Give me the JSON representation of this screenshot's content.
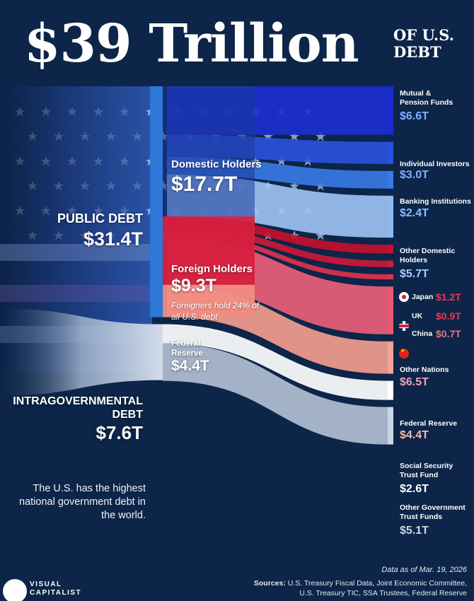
{
  "title": {
    "main": "$39 Trillion",
    "sub_line1": "OF U.S.",
    "sub_line2": "DEBT"
  },
  "left": {
    "public_label": "PUBLIC DEBT",
    "public_value": "$31.4T",
    "intra_label": "INTRAGOVERNMENTAL DEBT",
    "intra_value": "$7.6T",
    "note": "The U.S. has the highest national government debt in the world."
  },
  "middle": {
    "domestic_label": "Domestic Holders",
    "domestic_value": "$17.7T",
    "foreign_label": "Foreign Holders",
    "foreign_value": "$9.3T",
    "foreign_note": "Foreigners hold 24% of all U.S. debt",
    "fed_label_1": "Federal",
    "fed_label_2": "Reserve",
    "fed_value": "$4.4T"
  },
  "right": {
    "mutual_l1": "Mutual &",
    "mutual_l2": "Pension Funds",
    "mutual_v": "$6.6T",
    "individual_l": "Individual Investors",
    "individual_v": "$3.0T",
    "banking_l": "Banking Institutions",
    "banking_v": "$2.4T",
    "other_dom_l1": "Other Domestic",
    "other_dom_l2": "Holders",
    "other_dom_v": "$5.7T",
    "japan_l": "Japan",
    "japan_v": "$1.2T",
    "uk_l": "UK",
    "uk_v": "$0.9T",
    "china_l": "China",
    "china_v": "$0.7T",
    "other_nations_l": "Other Nations",
    "other_nations_v": "$6.5T",
    "fed_l": "Federal Reserve",
    "fed_v": "$4.4T",
    "ss_l1": "Social Security",
    "ss_l2": "Trust Fund",
    "ss_v": "$2.6T",
    "ogt_l1": "Other Government",
    "ogt_l2": "Trust Funds",
    "ogt_v": "$5.1T"
  },
  "footer": {
    "date": "Data as of Mar. 19, 2026",
    "sources_label": "Sources:",
    "sources_line1": "U.S. Treasury Fiscal Data, Joint Economic Committee,",
    "sources_line2": "U.S. Treasury TIC, SSA Trustees, Federal Reserve",
    "logo_line1": "VISUAL",
    "logo_line2": "CAPITALIST"
  },
  "colors": {
    "background": "#0c2548",
    "domestic": "#1f46c8",
    "domestic_light": "#4f86ea",
    "foreign": "#d7203e",
    "fed": "#f28c82",
    "intra": "#c9d6e6",
    "public_bar": "#2f78d8"
  },
  "chart_data": {
    "type": "sankey",
    "unit": "trillion USD",
    "total": 39,
    "nodes": [
      {
        "id": "public",
        "label": "PUBLIC DEBT",
        "value": 31.4
      },
      {
        "id": "intra",
        "label": "INTRAGOVERNMENTAL DEBT",
        "value": 7.6
      },
      {
        "id": "domestic",
        "label": "Domestic Holders",
        "value": 17.7
      },
      {
        "id": "foreign",
        "label": "Foreign Holders",
        "value": 9.3
      },
      {
        "id": "fedres",
        "label": "Federal Reserve",
        "value": 4.4
      },
      {
        "id": "mutual",
        "label": "Mutual & Pension Funds",
        "value": 6.6
      },
      {
        "id": "individual",
        "label": "Individual Investors",
        "value": 3.0
      },
      {
        "id": "banking",
        "label": "Banking Institutions",
        "value": 2.4
      },
      {
        "id": "otherdom",
        "label": "Other Domestic Holders",
        "value": 5.7
      },
      {
        "id": "japan",
        "label": "Japan",
        "value": 1.2
      },
      {
        "id": "uk",
        "label": "UK",
        "value": 0.9
      },
      {
        "id": "china",
        "label": "China",
        "value": 0.7
      },
      {
        "id": "othernations",
        "label": "Other Nations",
        "value": 6.5
      },
      {
        "id": "fedout",
        "label": "Federal Reserve",
        "value": 4.4
      },
      {
        "id": "ss",
        "label": "Social Security Trust Fund",
        "value": 2.6
      },
      {
        "id": "ogt",
        "label": "Other Government Trust Funds",
        "value": 5.1
      }
    ],
    "links": [
      {
        "source": "public",
        "target": "domestic",
        "value": 17.7
      },
      {
        "source": "public",
        "target": "foreign",
        "value": 9.3
      },
      {
        "source": "public",
        "target": "fedres",
        "value": 4.4
      },
      {
        "source": "domestic",
        "target": "mutual",
        "value": 6.6
      },
      {
        "source": "domestic",
        "target": "individual",
        "value": 3.0
      },
      {
        "source": "domestic",
        "target": "banking",
        "value": 2.4
      },
      {
        "source": "domestic",
        "target": "otherdom",
        "value": 5.7
      },
      {
        "source": "foreign",
        "target": "japan",
        "value": 1.2
      },
      {
        "source": "foreign",
        "target": "uk",
        "value": 0.9
      },
      {
        "source": "foreign",
        "target": "china",
        "value": 0.7
      },
      {
        "source": "foreign",
        "target": "othernations",
        "value": 6.5
      },
      {
        "source": "fedres",
        "target": "fedout",
        "value": 4.4
      },
      {
        "source": "intra",
        "target": "ss",
        "value": 2.6
      },
      {
        "source": "intra",
        "target": "ogt",
        "value": 5.1
      }
    ]
  }
}
